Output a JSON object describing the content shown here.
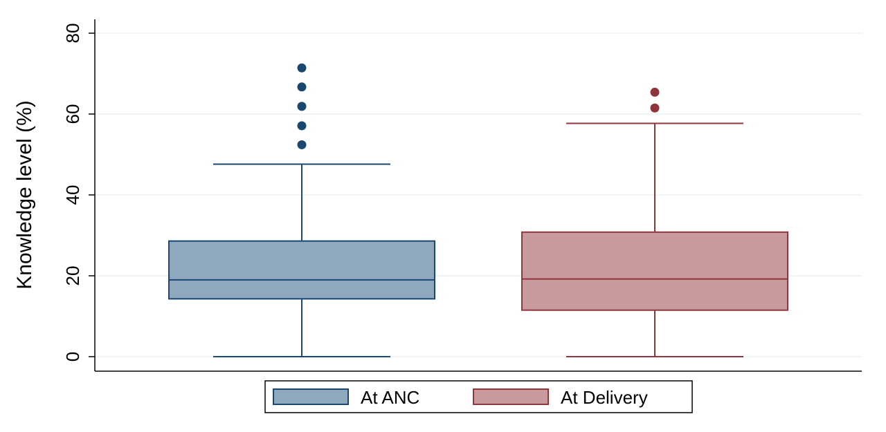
{
  "chart_data": {
    "type": "box",
    "ylabel": "Knowledge level (%)",
    "ylim": [
      0,
      80
    ],
    "yticks": [
      0,
      20,
      40,
      60,
      80
    ],
    "grid": true,
    "legend_position": "bottom",
    "series": [
      {
        "name": "At ANC",
        "color": "#1a476f",
        "fill": "#90a8be",
        "min": 0,
        "q1": 14.3,
        "median": 19.0,
        "q3": 28.6,
        "max": 47.6,
        "outliers": [
          52.4,
          57.1,
          61.9,
          66.7,
          71.4
        ]
      },
      {
        "name": "At Delivery",
        "color": "#90353b",
        "fill": "#c89a9d",
        "min": 0,
        "q1": 11.5,
        "median": 19.2,
        "q3": 30.8,
        "max": 57.7,
        "outliers": [
          61.5,
          65.4
        ]
      }
    ]
  }
}
